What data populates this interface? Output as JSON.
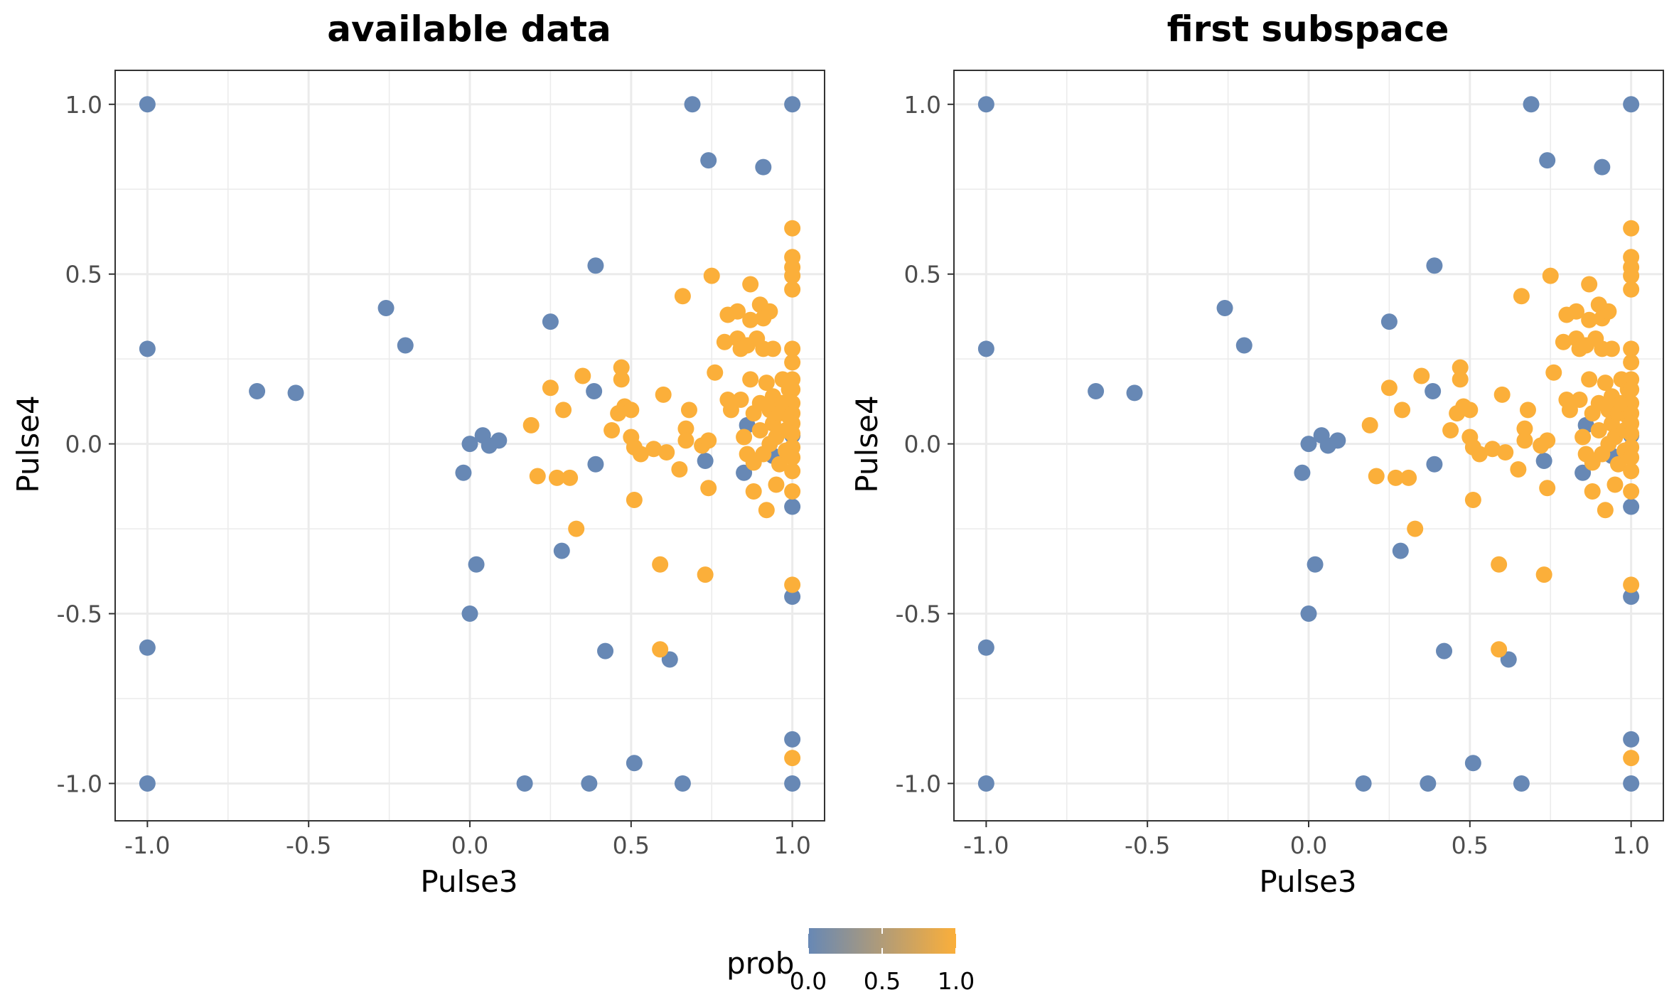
{
  "chart_data": [
    {
      "type": "scatter",
      "title": "available data",
      "xlabel": "Pulse3",
      "ylabel": "Pulse4",
      "xlim": [
        -1.1,
        1.1
      ],
      "ylim": [
        -1.11,
        1.1
      ],
      "xticks": [
        -1.0,
        -0.5,
        0.0,
        0.5,
        1.0
      ],
      "xtick_labels": [
        "-1.0",
        "-0.5",
        "0.0",
        "0.5",
        "1.0"
      ],
      "yticks": [
        -1.0,
        -0.5,
        0.0,
        0.5,
        1.0
      ],
      "ytick_labels": [
        "-1.0",
        "-0.5",
        "0.0",
        "0.5",
        "1.0"
      ],
      "grid": true,
      "points": [
        {
          "x": -1.0,
          "y": 1.0,
          "prob": 0.0
        },
        {
          "x": -1.0,
          "y": 0.28,
          "prob": 0.0
        },
        {
          "x": -1.0,
          "y": -0.6,
          "prob": 0.0
        },
        {
          "x": -1.0,
          "y": -1.0,
          "prob": 0.0
        },
        {
          "x": -0.66,
          "y": 0.155,
          "prob": 0.0
        },
        {
          "x": -0.54,
          "y": 0.15,
          "prob": 0.0
        },
        {
          "x": -0.26,
          "y": 0.4,
          "prob": 0.0
        },
        {
          "x": -0.2,
          "y": 0.29,
          "prob": 0.0
        },
        {
          "x": 0.0,
          "y": 0.0,
          "prob": 0.0
        },
        {
          "x": 0.04,
          "y": 0.025,
          "prob": 0.0
        },
        {
          "x": 0.06,
          "y": -0.005,
          "prob": 0.0
        },
        {
          "x": 0.09,
          "y": 0.01,
          "prob": 0.0
        },
        {
          "x": -0.02,
          "y": -0.085,
          "prob": 0.0
        },
        {
          "x": 0.02,
          "y": -0.355,
          "prob": 0.0
        },
        {
          "x": 0.0,
          "y": -0.5,
          "prob": 0.0
        },
        {
          "x": 0.25,
          "y": 0.36,
          "prob": 0.0
        },
        {
          "x": 0.39,
          "y": 0.525,
          "prob": 0.0
        },
        {
          "x": 0.385,
          "y": 0.155,
          "prob": 0.0
        },
        {
          "x": 0.39,
          "y": -0.06,
          "prob": 0.0
        },
        {
          "x": 0.285,
          "y": -0.315,
          "prob": 0.0
        },
        {
          "x": 0.42,
          "y": -0.61,
          "prob": 0.0
        },
        {
          "x": 0.17,
          "y": -1.0,
          "prob": 0.0
        },
        {
          "x": 0.37,
          "y": -1.0,
          "prob": 0.0
        },
        {
          "x": 0.51,
          "y": -0.94,
          "prob": 0.0
        },
        {
          "x": 0.62,
          "y": -0.635,
          "prob": 0.0
        },
        {
          "x": 0.66,
          "y": -1.0,
          "prob": 0.0
        },
        {
          "x": 0.69,
          "y": 1.0,
          "prob": 0.0
        },
        {
          "x": 0.74,
          "y": 0.835,
          "prob": 0.0
        },
        {
          "x": 0.91,
          "y": 0.815,
          "prob": 0.0
        },
        {
          "x": 1.0,
          "y": 1.0,
          "prob": 0.0
        },
        {
          "x": 0.73,
          "y": -0.05,
          "prob": 0.0
        },
        {
          "x": 0.85,
          "y": -0.085,
          "prob": 0.0
        },
        {
          "x": 0.86,
          "y": 0.055,
          "prob": 0.0
        },
        {
          "x": 0.94,
          "y": -0.035,
          "prob": 0.0
        },
        {
          "x": 1.0,
          "y": 0.025,
          "prob": 0.0
        },
        {
          "x": 1.0,
          "y": -0.185,
          "prob": 0.0
        },
        {
          "x": 1.0,
          "y": -0.45,
          "prob": 0.0
        },
        {
          "x": 1.0,
          "y": -0.87,
          "prob": 0.0
        },
        {
          "x": 1.0,
          "y": -1.0,
          "prob": 0.0
        },
        {
          "x": 0.19,
          "y": 0.055,
          "prob": 1.0
        },
        {
          "x": 0.21,
          "y": -0.095,
          "prob": 1.0
        },
        {
          "x": 0.25,
          "y": 0.165,
          "prob": 1.0
        },
        {
          "x": 0.27,
          "y": -0.1,
          "prob": 1.0
        },
        {
          "x": 0.29,
          "y": 0.1,
          "prob": 1.0
        },
        {
          "x": 0.31,
          "y": -0.1,
          "prob": 1.0
        },
        {
          "x": 0.33,
          "y": -0.25,
          "prob": 1.0
        },
        {
          "x": 0.35,
          "y": 0.2,
          "prob": 1.0
        },
        {
          "x": 0.44,
          "y": 0.04,
          "prob": 1.0
        },
        {
          "x": 0.46,
          "y": 0.09,
          "prob": 1.0
        },
        {
          "x": 0.47,
          "y": 0.225,
          "prob": 1.0
        },
        {
          "x": 0.47,
          "y": 0.19,
          "prob": 1.0
        },
        {
          "x": 0.48,
          "y": 0.11,
          "prob": 1.0
        },
        {
          "x": 0.5,
          "y": 0.1,
          "prob": 1.0
        },
        {
          "x": 0.5,
          "y": 0.02,
          "prob": 1.0
        },
        {
          "x": 0.51,
          "y": -0.01,
          "prob": 1.0
        },
        {
          "x": 0.53,
          "y": -0.03,
          "prob": 1.0
        },
        {
          "x": 0.51,
          "y": -0.165,
          "prob": 1.0
        },
        {
          "x": 0.57,
          "y": -0.015,
          "prob": 1.0
        },
        {
          "x": 0.6,
          "y": 0.145,
          "prob": 1.0
        },
        {
          "x": 0.61,
          "y": -0.025,
          "prob": 1.0
        },
        {
          "x": 0.59,
          "y": -0.355,
          "prob": 1.0
        },
        {
          "x": 0.59,
          "y": -0.605,
          "prob": 1.0
        },
        {
          "x": 0.65,
          "y": -0.075,
          "prob": 1.0
        },
        {
          "x": 0.66,
          "y": 0.435,
          "prob": 1.0
        },
        {
          "x": 0.67,
          "y": 0.045,
          "prob": 1.0
        },
        {
          "x": 0.68,
          "y": 0.1,
          "prob": 1.0
        },
        {
          "x": 0.67,
          "y": 0.01,
          "prob": 1.0
        },
        {
          "x": 0.72,
          "y": -0.005,
          "prob": 1.0
        },
        {
          "x": 0.74,
          "y": 0.01,
          "prob": 1.0
        },
        {
          "x": 0.75,
          "y": 0.495,
          "prob": 1.0
        },
        {
          "x": 0.76,
          "y": 0.21,
          "prob": 1.0
        },
        {
          "x": 0.74,
          "y": -0.13,
          "prob": 1.0
        },
        {
          "x": 0.73,
          "y": -0.385,
          "prob": 1.0
        },
        {
          "x": 0.79,
          "y": 0.3,
          "prob": 1.0
        },
        {
          "x": 0.8,
          "y": 0.38,
          "prob": 1.0
        },
        {
          "x": 0.8,
          "y": 0.13,
          "prob": 1.0
        },
        {
          "x": 0.81,
          "y": 0.1,
          "prob": 1.0
        },
        {
          "x": 0.83,
          "y": 0.31,
          "prob": 1.0
        },
        {
          "x": 0.83,
          "y": 0.39,
          "prob": 1.0
        },
        {
          "x": 0.84,
          "y": 0.13,
          "prob": 1.0
        },
        {
          "x": 0.84,
          "y": 0.28,
          "prob": 1.0
        },
        {
          "x": 0.85,
          "y": 0.02,
          "prob": 1.0
        },
        {
          "x": 0.86,
          "y": 0.29,
          "prob": 1.0
        },
        {
          "x": 0.86,
          "y": -0.03,
          "prob": 1.0
        },
        {
          "x": 0.87,
          "y": 0.47,
          "prob": 1.0
        },
        {
          "x": 0.87,
          "y": 0.365,
          "prob": 1.0
        },
        {
          "x": 0.87,
          "y": 0.19,
          "prob": 1.0
        },
        {
          "x": 0.88,
          "y": 0.09,
          "prob": 1.0
        },
        {
          "x": 0.88,
          "y": -0.055,
          "prob": 1.0
        },
        {
          "x": 0.88,
          "y": -0.14,
          "prob": 1.0
        },
        {
          "x": 0.89,
          "y": 0.31,
          "prob": 1.0
        },
        {
          "x": 0.9,
          "y": 0.41,
          "prob": 1.0
        },
        {
          "x": 0.9,
          "y": 0.04,
          "prob": 1.0
        },
        {
          "x": 0.9,
          "y": 0.12,
          "prob": 1.0
        },
        {
          "x": 0.91,
          "y": 0.37,
          "prob": 1.0
        },
        {
          "x": 0.91,
          "y": 0.28,
          "prob": 1.0
        },
        {
          "x": 0.91,
          "y": -0.03,
          "prob": 1.0
        },
        {
          "x": 0.92,
          "y": 0.18,
          "prob": 1.0
        },
        {
          "x": 0.92,
          "y": -0.195,
          "prob": 1.0
        },
        {
          "x": 0.93,
          "y": 0.39,
          "prob": 1.0
        },
        {
          "x": 0.93,
          "y": 0.1,
          "prob": 1.0
        },
        {
          "x": 0.93,
          "y": 0.0,
          "prob": 1.0
        },
        {
          "x": 0.94,
          "y": 0.28,
          "prob": 1.0
        },
        {
          "x": 0.94,
          "y": 0.14,
          "prob": 1.0
        },
        {
          "x": 0.94,
          "y": 0.06,
          "prob": 1.0
        },
        {
          "x": 0.95,
          "y": -0.12,
          "prob": 1.0
        },
        {
          "x": 0.95,
          "y": 0.02,
          "prob": 1.0
        },
        {
          "x": 0.96,
          "y": 0.09,
          "prob": 1.0
        },
        {
          "x": 0.96,
          "y": -0.06,
          "prob": 1.0
        },
        {
          "x": 0.97,
          "y": 0.19,
          "prob": 1.0
        },
        {
          "x": 0.97,
          "y": 0.12,
          "prob": 1.0
        },
        {
          "x": 0.98,
          "y": 0.04,
          "prob": 1.0
        },
        {
          "x": 0.98,
          "y": -0.02,
          "prob": 1.0
        },
        {
          "x": 0.99,
          "y": 0.16,
          "prob": 1.0
        },
        {
          "x": 0.99,
          "y": 0.08,
          "prob": 1.0
        },
        {
          "x": 1.0,
          "y": 0.635,
          "prob": 1.0
        },
        {
          "x": 1.0,
          "y": 0.55,
          "prob": 1.0
        },
        {
          "x": 1.0,
          "y": 0.52,
          "prob": 1.0
        },
        {
          "x": 1.0,
          "y": 0.495,
          "prob": 1.0
        },
        {
          "x": 1.0,
          "y": 0.455,
          "prob": 1.0
        },
        {
          "x": 1.0,
          "y": 0.28,
          "prob": 1.0
        },
        {
          "x": 1.0,
          "y": 0.24,
          "prob": 1.0
        },
        {
          "x": 1.0,
          "y": 0.19,
          "prob": 1.0
        },
        {
          "x": 1.0,
          "y": 0.16,
          "prob": 1.0
        },
        {
          "x": 1.0,
          "y": 0.12,
          "prob": 1.0
        },
        {
          "x": 1.0,
          "y": 0.09,
          "prob": 1.0
        },
        {
          "x": 1.0,
          "y": 0.06,
          "prob": 1.0
        },
        {
          "x": 1.0,
          "y": 0.03,
          "prob": 1.0
        },
        {
          "x": 1.0,
          "y": -0.01,
          "prob": 1.0
        },
        {
          "x": 1.0,
          "y": -0.04,
          "prob": 1.0
        },
        {
          "x": 1.0,
          "y": -0.08,
          "prob": 1.0
        },
        {
          "x": 1.0,
          "y": -0.14,
          "prob": 1.0
        },
        {
          "x": 1.0,
          "y": -0.415,
          "prob": 1.0
        },
        {
          "x": 1.0,
          "y": -0.925,
          "prob": 1.0
        }
      ]
    },
    {
      "type": "scatter",
      "title": "first subspace",
      "xlabel": "Pulse3",
      "ylabel": "Pulse4",
      "xlim": [
        -1.1,
        1.1
      ],
      "ylim": [
        -1.11,
        1.1
      ],
      "xticks": [
        -1.0,
        -0.5,
        0.0,
        0.5,
        1.0
      ],
      "xtick_labels": [
        "-1.0",
        "-0.5",
        "0.0",
        "0.5",
        "1.0"
      ],
      "yticks": [
        -1.0,
        -0.5,
        0.0,
        0.5,
        1.0
      ],
      "ytick_labels": [
        "-1.0",
        "-0.5",
        "0.0",
        "0.5",
        "1.0"
      ],
      "grid": true,
      "points_same_as_panel": 0
    }
  ],
  "legend": {
    "title": "prob",
    "tick_labels": [
      "0.0",
      "0.5",
      "1.0"
    ],
    "ticks": [
      0.0,
      0.5,
      1.0
    ],
    "low_color": "#6788B5",
    "high_color": "#FBAF3A",
    "placement": "bottom"
  },
  "colors": {
    "grid": "#EBEBEB",
    "panel_border": "#333333",
    "tick_text": "#4D4D4D",
    "title_text": "#000000"
  }
}
